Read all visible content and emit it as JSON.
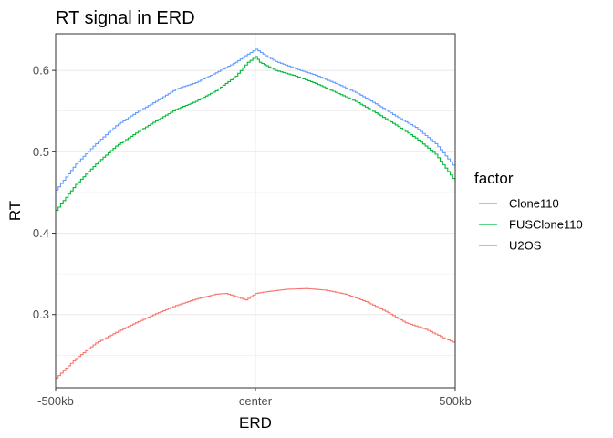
{
  "chart_data": {
    "type": "line",
    "title": "RT signal in ERD",
    "xlabel": "ERD",
    "ylabel": "RT",
    "x_ticks": [
      {
        "value": -500,
        "label": "-500kb"
      },
      {
        "value": 0,
        "label": "center"
      },
      {
        "value": 500,
        "label": "500kb"
      }
    ],
    "y_ticks": [
      0.3,
      0.4,
      0.5,
      0.6
    ],
    "xlim": [
      -500,
      500
    ],
    "ylim": [
      0.21,
      0.645
    ],
    "grid": true,
    "legend": {
      "title": "factor",
      "position": "right"
    },
    "series": [
      {
        "name": "Clone110",
        "color": "#F8766D",
        "points": [
          [
            -500,
            0.222
          ],
          [
            -450,
            0.246
          ],
          [
            -400,
            0.265
          ],
          [
            -350,
            0.278
          ],
          [
            -300,
            0.29
          ],
          [
            -250,
            0.301
          ],
          [
            -200,
            0.311
          ],
          [
            -150,
            0.319
          ],
          [
            -100,
            0.325
          ],
          [
            -75,
            0.326
          ],
          [
            -50,
            0.322
          ],
          [
            -25,
            0.318
          ],
          [
            0,
            0.326
          ],
          [
            25,
            0.328
          ],
          [
            75,
            0.331
          ],
          [
            125,
            0.332
          ],
          [
            175,
            0.33
          ],
          [
            225,
            0.325
          ],
          [
            275,
            0.316
          ],
          [
            325,
            0.304
          ],
          [
            375,
            0.29
          ],
          [
            425,
            0.282
          ],
          [
            475,
            0.27
          ],
          [
            500,
            0.265
          ]
        ]
      },
      {
        "name": "FUSClone110",
        "color": "#00BA38",
        "points": [
          [
            -500,
            0.428
          ],
          [
            -450,
            0.46
          ],
          [
            -400,
            0.485
          ],
          [
            -350,
            0.507
          ],
          [
            -300,
            0.523
          ],
          [
            -250,
            0.538
          ],
          [
            -200,
            0.552
          ],
          [
            -150,
            0.562
          ],
          [
            -100,
            0.575
          ],
          [
            -50,
            0.593
          ],
          [
            -20,
            0.61
          ],
          [
            0,
            0.617
          ],
          [
            10,
            0.61
          ],
          [
            50,
            0.6
          ],
          [
            100,
            0.593
          ],
          [
            150,
            0.584
          ],
          [
            200,
            0.573
          ],
          [
            250,
            0.562
          ],
          [
            300,
            0.548
          ],
          [
            350,
            0.533
          ],
          [
            400,
            0.517
          ],
          [
            450,
            0.497
          ],
          [
            500,
            0.463
          ]
        ]
      },
      {
        "name": "U2OS",
        "color": "#619CFF",
        "points": [
          [
            -500,
            0.453
          ],
          [
            -450,
            0.485
          ],
          [
            -400,
            0.51
          ],
          [
            -350,
            0.532
          ],
          [
            -300,
            0.548
          ],
          [
            -250,
            0.562
          ],
          [
            -200,
            0.577
          ],
          [
            -150,
            0.585
          ],
          [
            -100,
            0.597
          ],
          [
            -50,
            0.61
          ],
          [
            -20,
            0.62
          ],
          [
            0,
            0.626
          ],
          [
            25,
            0.618
          ],
          [
            50,
            0.611
          ],
          [
            100,
            0.602
          ],
          [
            150,
            0.594
          ],
          [
            200,
            0.584
          ],
          [
            250,
            0.573
          ],
          [
            300,
            0.559
          ],
          [
            350,
            0.544
          ],
          [
            400,
            0.53
          ],
          [
            450,
            0.51
          ],
          [
            500,
            0.48
          ]
        ]
      }
    ]
  }
}
